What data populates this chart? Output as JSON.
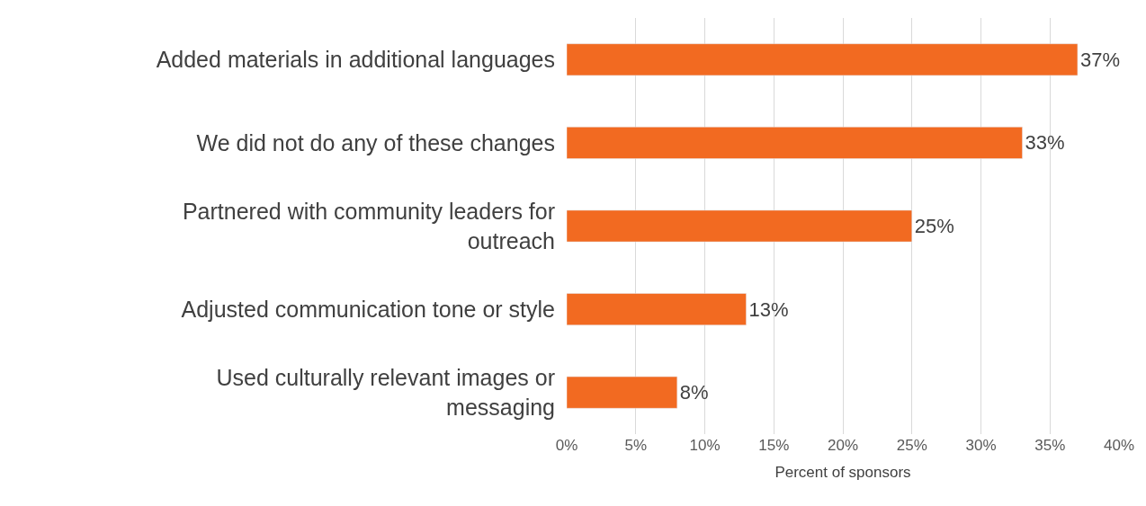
{
  "chart_data": {
    "type": "bar",
    "orientation": "horizontal",
    "xlabel": "Percent of sponsors",
    "categories": [
      "Added materials in additional languages",
      "We did not do any of these changes",
      "Partnered with community leaders for outreach",
      "Adjusted communication tone or style",
      "Used culturally relevant images or messaging"
    ],
    "values": [
      37,
      33,
      25,
      13,
      8
    ],
    "value_labels": [
      "37%",
      "33%",
      "25%",
      "13%",
      "8%"
    ],
    "color": "#f26a21",
    "xlim": [
      0,
      40
    ],
    "xticks": [
      {
        "value": 0,
        "label": "0%"
      },
      {
        "value": 5,
        "label": "5%"
      },
      {
        "value": 10,
        "label": "10%"
      },
      {
        "value": 15,
        "label": "15%"
      },
      {
        "value": 20,
        "label": "20%"
      },
      {
        "value": 25,
        "label": "25%"
      },
      {
        "value": 30,
        "label": "30%"
      },
      {
        "value": 35,
        "label": "35%"
      },
      {
        "value": 40,
        "label": "40%"
      }
    ],
    "grid": "x",
    "legend": false
  }
}
